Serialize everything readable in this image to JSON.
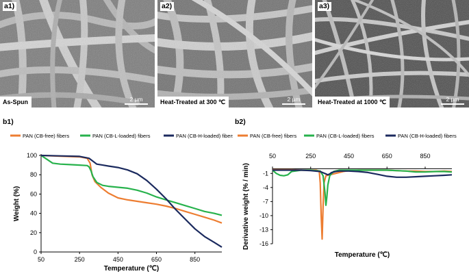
{
  "panels": [
    {
      "tag": "a1)",
      "condition": "As-Spun",
      "scale": "2 µm"
    },
    {
      "tag": "a2)",
      "condition": "Heat-Treated at 300 ℃",
      "scale": "2 µm"
    },
    {
      "tag": "a3)",
      "condition": "Heat-Treated at 1000 ℃",
      "scale": "2 µm"
    }
  ],
  "fig_b1": {
    "tag": "b1)"
  },
  "fig_b2": {
    "tag": "b2)"
  },
  "colors": {
    "cb_free": "#ED7D31",
    "cb_l": "#27B24C",
    "cb_h": "#1B2A5E"
  },
  "chart_data": [
    {
      "type": "line",
      "id": "b1",
      "title": "",
      "xlabel": "Temperature (℃)",
      "ylabel": "Weight (%)",
      "xlim": [
        50,
        990
      ],
      "ylim": [
        0,
        100
      ],
      "xticks": [
        50,
        250,
        450,
        650,
        850
      ],
      "yticks": [
        0,
        20,
        40,
        60,
        80,
        100
      ],
      "legend": "top",
      "series": [
        {
          "name": "PAN (CB-free) fibers",
          "x": [
            50,
            150,
            250,
            290,
            305,
            315,
            330,
            360,
            400,
            450,
            500,
            550,
            600,
            650,
            700,
            750,
            800,
            850,
            900,
            950,
            990
          ],
          "y": [
            100,
            99.2,
            98.5,
            97,
            92,
            80,
            73,
            67,
            61,
            56,
            54,
            52.5,
            51,
            49.5,
            47.5,
            45,
            42,
            39,
            36,
            33,
            30
          ]
        },
        {
          "name": "PAN (CB-L-loaded) fibers",
          "x": [
            50,
            80,
            110,
            150,
            200,
            250,
            290,
            300,
            310,
            320,
            340,
            370,
            400,
            450,
            500,
            550,
            600,
            650,
            700,
            750,
            800,
            850,
            900,
            950,
            990
          ],
          "y": [
            100,
            96,
            92,
            91,
            90.5,
            90,
            89.5,
            88,
            84,
            78,
            72,
            69,
            68,
            67,
            66,
            64,
            61,
            57,
            54,
            51,
            48,
            45,
            42,
            40,
            38
          ]
        },
        {
          "name": "PAN (CB-H-loaded) fibers",
          "x": [
            50,
            150,
            250,
            300,
            320,
            340,
            370,
            400,
            450,
            500,
            550,
            600,
            650,
            700,
            750,
            800,
            850,
            900,
            950,
            990
          ],
          "y": [
            100,
            99.5,
            99,
            97,
            94,
            91,
            90,
            89,
            87.5,
            85,
            81,
            74,
            65,
            55,
            44,
            34,
            24,
            16,
            10,
            5
          ]
        }
      ]
    },
    {
      "type": "line",
      "id": "b2",
      "title": "",
      "xlabel": "Temperature (℃)",
      "ylabel": "Derivative weight (% / min)",
      "xlim": [
        50,
        990
      ],
      "ylim": [
        -16,
        0.5
      ],
      "xticks": [
        50,
        250,
        450,
        650,
        850
      ],
      "yticks": [
        -1,
        -4,
        -7,
        -10,
        -13,
        -16
      ],
      "legend": "top",
      "series": [
        {
          "name": "PAN (CB-free) fibers",
          "x": [
            50,
            100,
            150,
            200,
            250,
            280,
            295,
            300,
            305,
            310,
            315,
            320,
            330,
            350,
            380,
            420,
            450,
            500,
            550,
            600,
            650,
            700,
            750,
            800,
            850,
            900,
            950,
            990
          ],
          "y": [
            -0.2,
            -0.2,
            -0.2,
            -0.3,
            -0.3,
            -0.3,
            -0.5,
            -3,
            -10,
            -15,
            -8,
            -3,
            -1.5,
            -1.3,
            -1.0,
            -0.6,
            -0.4,
            -0.3,
            -0.3,
            -0.3,
            -0.3,
            -0.4,
            -0.5,
            -0.5,
            -0.6,
            -0.6,
            -0.5,
            -0.6
          ]
        },
        {
          "name": "PAN (CB-L-loaded) fibers",
          "x": [
            50,
            70,
            90,
            110,
            130,
            150,
            200,
            250,
            300,
            315,
            325,
            330,
            335,
            340,
            350,
            370,
            400,
            450,
            500,
            550,
            600,
            650,
            700,
            750,
            800,
            850,
            900,
            950,
            990
          ],
          "y": [
            -0.3,
            -1,
            -1.4,
            -1.5,
            -1.3,
            -0.6,
            -0.3,
            -0.3,
            -0.5,
            -1.5,
            -5,
            -7.8,
            -6,
            -3.5,
            -1.5,
            -0.6,
            -0.3,
            -0.3,
            -0.3,
            -0.3,
            -0.3,
            -0.3,
            -0.4,
            -0.5,
            -0.7,
            -0.7,
            -0.6,
            -0.6,
            -0.7
          ]
        },
        {
          "name": "PAN (CB-H-loaded) fibers",
          "x": [
            50,
            100,
            150,
            200,
            250,
            300,
            330,
            340,
            350,
            360,
            380,
            400,
            450,
            500,
            550,
            600,
            650,
            700,
            750,
            800,
            850,
            900,
            950,
            990
          ],
          "y": [
            -0.3,
            -0.3,
            -0.3,
            -0.3,
            -0.4,
            -0.6,
            -1.1,
            -1.3,
            -1.1,
            -0.8,
            -0.6,
            -0.5,
            -0.5,
            -0.6,
            -0.8,
            -1.2,
            -1.6,
            -1.8,
            -1.8,
            -1.7,
            -1.6,
            -1.5,
            -1.4,
            -1.3
          ]
        }
      ]
    }
  ]
}
